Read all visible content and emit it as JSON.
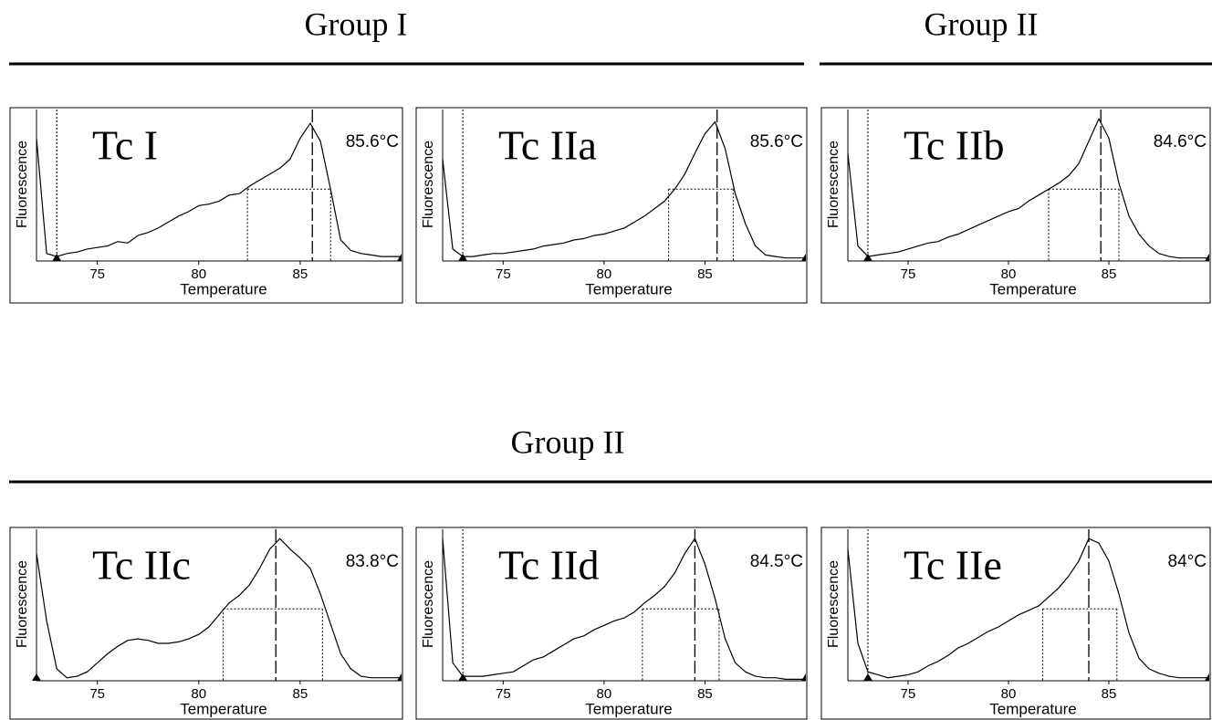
{
  "groups": [
    {
      "title": "Group I"
    },
    {
      "title": "Group II"
    },
    {
      "title": "Group II"
    }
  ],
  "chart_data": [
    {
      "type": "line",
      "title": "Tc I",
      "xlabel": "Temperature",
      "ylabel": "Fluorescence",
      "xlim": [
        72,
        90
      ],
      "ylim": [
        0,
        100
      ],
      "xticks": [
        75,
        80,
        85
      ],
      "tm": {
        "value": 85.6,
        "label": "85.6°C"
      },
      "half_width": {
        "x": [
          82.4,
          86.5
        ],
        "y": 48
      },
      "cursor": 73,
      "x": [
        72,
        72.5,
        73,
        73.5,
        74,
        74.5,
        75,
        75.5,
        76,
        76.5,
        77,
        77.5,
        78,
        78.5,
        79,
        79.5,
        80,
        80.5,
        81,
        81.5,
        82,
        82.5,
        83,
        83.5,
        84,
        84.5,
        85,
        85.5,
        86,
        86.5,
        87,
        87.5,
        88,
        88.5,
        89,
        89.5,
        90
      ],
      "values": [
        82,
        5,
        3,
        5,
        6,
        8,
        9,
        10,
        13,
        12,
        17,
        19,
        22,
        26,
        30,
        33,
        37,
        38,
        40,
        44,
        45,
        50,
        54,
        58,
        62,
        68,
        82,
        92,
        80,
        48,
        14,
        7,
        5,
        4,
        3,
        3,
        3
      ]
    },
    {
      "type": "line",
      "title": "Tc IIa",
      "xlabel": "Temperature",
      "ylabel": "Fluorescence",
      "xlim": [
        72,
        90
      ],
      "ylim": [
        0,
        100
      ],
      "xticks": [
        75,
        80,
        85
      ],
      "tm": {
        "value": 85.6,
        "label": "85.6°C"
      },
      "half_width": {
        "x": [
          83.2,
          86.4
        ],
        "y": 48
      },
      "cursor": 73,
      "x": [
        72,
        72.5,
        73,
        73.5,
        74,
        74.5,
        75,
        75.5,
        76,
        76.5,
        77,
        77.5,
        78,
        78.5,
        79,
        79.5,
        80,
        80.5,
        81,
        81.5,
        82,
        82.5,
        83,
        83.5,
        84,
        84.5,
        85,
        85.5,
        86,
        86.5,
        87,
        87.5,
        88,
        88.5,
        89,
        89.5,
        90
      ],
      "values": [
        68,
        8,
        3,
        3,
        4,
        5,
        5,
        6,
        7,
        8,
        10,
        11,
        12,
        14,
        15,
        17,
        18,
        20,
        22,
        26,
        30,
        35,
        40,
        48,
        58,
        72,
        85,
        93,
        75,
        45,
        25,
        10,
        4,
        3,
        2,
        2,
        2
      ]
    },
    {
      "type": "line",
      "title": "Tc IIb",
      "xlabel": "Temperature",
      "ylabel": "Fluorescence",
      "xlim": [
        72,
        90
      ],
      "ylim": [
        0,
        100
      ],
      "xticks": [
        75,
        80,
        85
      ],
      "tm": {
        "value": 84.6,
        "label": "84.6°C"
      },
      "half_width": {
        "x": [
          82,
          85.5
        ],
        "y": 48
      },
      "cursor": 73,
      "x": [
        72,
        72.5,
        73,
        73.5,
        74,
        74.5,
        75,
        75.5,
        76,
        76.5,
        77,
        77.5,
        78,
        78.5,
        79,
        79.5,
        80,
        80.5,
        81,
        81.5,
        82,
        82.5,
        83,
        83.5,
        84,
        84.5,
        85,
        85.5,
        86,
        86.5,
        87,
        87.5,
        88,
        88.5,
        89,
        89.5,
        90
      ],
      "values": [
        72,
        10,
        3,
        4,
        5,
        6,
        8,
        10,
        12,
        13,
        16,
        18,
        21,
        24,
        27,
        30,
        33,
        35,
        40,
        44,
        48,
        52,
        57,
        65,
        80,
        95,
        82,
        52,
        30,
        18,
        10,
        5,
        3,
        2,
        2,
        2,
        2
      ]
    },
    {
      "type": "line",
      "title": "Tc IIc",
      "xlabel": "Temperature",
      "ylabel": "Fluorescence",
      "xlim": [
        72,
        90
      ],
      "ylim": [
        0,
        100
      ],
      "xticks": [
        75,
        80,
        85
      ],
      "tm": {
        "value": 83.8,
        "label": "83.8°C"
      },
      "half_width": {
        "x": [
          81.2,
          86.1
        ],
        "y": 48
      },
      "cursor": 72,
      "x": [
        72,
        72.5,
        73,
        73.5,
        74,
        74.5,
        75,
        75.5,
        76,
        76.5,
        77,
        77.5,
        78,
        78.5,
        79,
        79.5,
        80,
        80.5,
        81,
        81.5,
        82,
        82.5,
        83,
        83.5,
        84,
        84.5,
        85,
        85.5,
        86,
        86.5,
        87,
        87.5,
        88,
        88.5,
        89,
        89.5,
        90
      ],
      "values": [
        85,
        40,
        8,
        2,
        3,
        6,
        12,
        18,
        23,
        27,
        28,
        27,
        25,
        25,
        26,
        28,
        31,
        36,
        44,
        52,
        57,
        64,
        75,
        88,
        95,
        88,
        82,
        75,
        58,
        38,
        18,
        8,
        3,
        2,
        2,
        2,
        2
      ]
    },
    {
      "type": "line",
      "title": "Tc IId",
      "xlabel": "Temperature",
      "ylabel": "Fluorescence",
      "xlim": [
        72,
        90
      ],
      "ylim": [
        0,
        100
      ],
      "xticks": [
        75,
        80,
        85
      ],
      "tm": {
        "value": 84.5,
        "label": "84.5°C"
      },
      "half_width": {
        "x": [
          81.9,
          85.7
        ],
        "y": 48
      },
      "cursor": 73,
      "x": [
        72,
        72.5,
        73,
        73.5,
        74,
        74.5,
        75,
        75.5,
        76,
        76.5,
        77,
        77.5,
        78,
        78.5,
        79,
        79.5,
        80,
        80.5,
        81,
        81.5,
        82,
        82.5,
        83,
        83.5,
        84,
        84.5,
        85,
        85.5,
        86,
        86.5,
        87,
        87.5,
        88,
        88.5,
        89,
        89.5,
        90
      ],
      "values": [
        95,
        12,
        3,
        3,
        3,
        4,
        5,
        6,
        10,
        14,
        16,
        20,
        24,
        28,
        30,
        34,
        37,
        40,
        42,
        46,
        52,
        57,
        63,
        72,
        85,
        95,
        78,
        55,
        28,
        12,
        6,
        3,
        2,
        2,
        1,
        1,
        1
      ]
    },
    {
      "type": "line",
      "title": "Tc IIe",
      "xlabel": "Temperature",
      "ylabel": "Fluorescence",
      "xlim": [
        72,
        90
      ],
      "ylim": [
        0,
        100
      ],
      "xticks": [
        75,
        80,
        85
      ],
      "tm": {
        "value": 84,
        "label": "84°C"
      },
      "half_width": {
        "x": [
          81.7,
          85.4
        ],
        "y": 48
      },
      "cursor": 73,
      "x": [
        72,
        72.5,
        73,
        73.5,
        74,
        74.5,
        75,
        75.5,
        76,
        76.5,
        77,
        77.5,
        78,
        78.5,
        79,
        79.5,
        80,
        80.5,
        81,
        81.5,
        82,
        82.5,
        83,
        83.5,
        84,
        84.5,
        85,
        85.5,
        86,
        86.5,
        87,
        87.5,
        88,
        88.5,
        89,
        89.5,
        90
      ],
      "values": [
        88,
        25,
        6,
        4,
        2,
        3,
        4,
        6,
        10,
        13,
        17,
        22,
        25,
        29,
        33,
        36,
        40,
        44,
        47,
        50,
        56,
        62,
        70,
        80,
        95,
        92,
        80,
        58,
        32,
        15,
        8,
        5,
        3,
        2,
        2,
        2,
        2
      ]
    }
  ]
}
